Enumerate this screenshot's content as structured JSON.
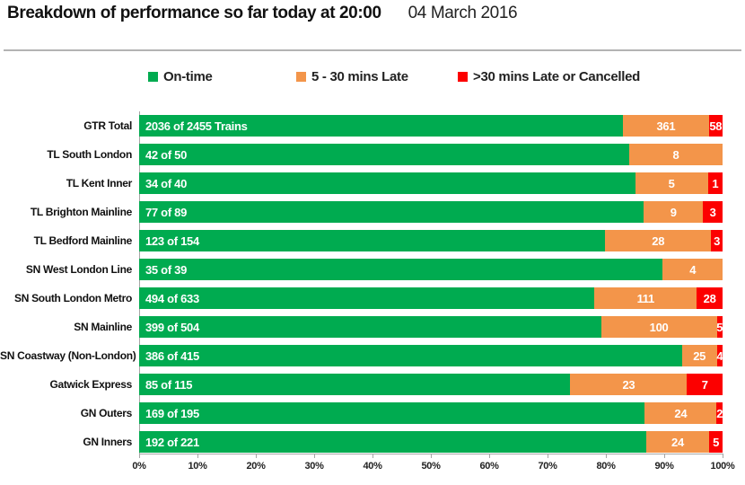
{
  "header": {
    "title": "Breakdown of performance so far today at 20:00",
    "date": "04 March 2016"
  },
  "legend": {
    "items": [
      {
        "label": "On-time",
        "color": "#00AB50"
      },
      {
        "label": "5 - 30 mins Late",
        "color": "#F3954A"
      },
      {
        "label": ">30 mins Late or Cancelled",
        "color": "#FC0000"
      }
    ]
  },
  "chart_data": {
    "type": "bar",
    "stacked": true,
    "orientation": "horizontal",
    "title": "Breakdown of performance so far today at 20:00",
    "xlabel": "",
    "ylabel": "",
    "xlim": [
      0,
      100
    ],
    "x_ticks": [
      "0%",
      "10%",
      "20%",
      "30%",
      "40%",
      "50%",
      "60%",
      "70%",
      "80%",
      "90%",
      "100%"
    ],
    "grid": false,
    "legend_position": "top",
    "series_names": [
      "On-time",
      "5 - 30 mins Late",
      ">30 mins Late or Cancelled"
    ],
    "colors": {
      "on_time": "#00AB50",
      "late_5_30": "#F3954A",
      "late_30_cancelled": "#FC0000",
      "axis": "#a6a6a6"
    },
    "rows": [
      {
        "category": "GTR Total",
        "total": 2455,
        "on_time": 2036,
        "late_5_30": 361,
        "late_30_cancelled": 58,
        "on_time_label": "2036 of 2455 Trains"
      },
      {
        "category": "TL South London",
        "total": 50,
        "on_time": 42,
        "late_5_30": 8,
        "late_30_cancelled": 0,
        "on_time_label": "42 of 50"
      },
      {
        "category": "TL Kent Inner",
        "total": 40,
        "on_time": 34,
        "late_5_30": 5,
        "late_30_cancelled": 1,
        "on_time_label": "34 of 40"
      },
      {
        "category": "TL Brighton Mainline",
        "total": 89,
        "on_time": 77,
        "late_5_30": 9,
        "late_30_cancelled": 3,
        "on_time_label": "77 of 89"
      },
      {
        "category": "TL Bedford Mainline",
        "total": 154,
        "on_time": 123,
        "late_5_30": 28,
        "late_30_cancelled": 3,
        "on_time_label": "123 of 154"
      },
      {
        "category": "SN West London Line",
        "total": 39,
        "on_time": 35,
        "late_5_30": 4,
        "late_30_cancelled": 0,
        "on_time_label": "35 of 39"
      },
      {
        "category": "SN South London Metro",
        "total": 633,
        "on_time": 494,
        "late_5_30": 111,
        "late_30_cancelled": 28,
        "on_time_label": "494 of 633"
      },
      {
        "category": "SN Mainline",
        "total": 504,
        "on_time": 399,
        "late_5_30": 100,
        "late_30_cancelled": 5,
        "on_time_label": "399 of 504"
      },
      {
        "category": "SN Coastway (Non-London)",
        "total": 415,
        "on_time": 386,
        "late_5_30": 25,
        "late_30_cancelled": 4,
        "on_time_label": "386 of 415"
      },
      {
        "category": "Gatwick Express",
        "total": 115,
        "on_time": 85,
        "late_5_30": 23,
        "late_30_cancelled": 7,
        "on_time_label": "85 of 115"
      },
      {
        "category": "GN Outers",
        "total": 195,
        "on_time": 169,
        "late_5_30": 24,
        "late_30_cancelled": 2,
        "on_time_label": "169 of 195"
      },
      {
        "category": "GN Inners",
        "total": 221,
        "on_time": 192,
        "late_5_30": 24,
        "late_30_cancelled": 5,
        "on_time_label": "192 of 221"
      }
    ]
  }
}
